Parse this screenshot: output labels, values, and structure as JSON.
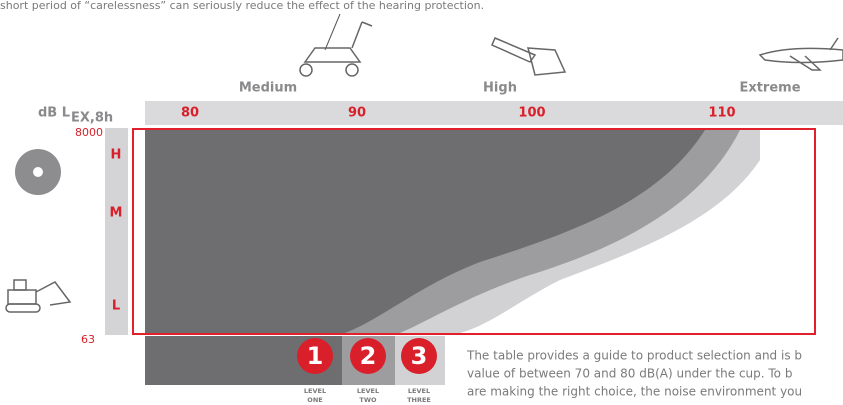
{
  "intro_text": "short period of “carelessness” can seriously reduce the effect of the hearing protection.",
  "noise_categories": [
    "Medium",
    "High",
    "Extreme"
  ],
  "axis_label": {
    "main": "dB L",
    "subscript": "EX,8h"
  },
  "ticks": [
    "80",
    "90",
    "100",
    "110"
  ],
  "frequency": {
    "top": "8000",
    "bottom": "63"
  },
  "bands": [
    "H",
    "M",
    "L"
  ],
  "levels": [
    {
      "number": "1",
      "label_1": "LEVEL",
      "label_2": "ONE"
    },
    {
      "number": "2",
      "label_1": "LEVEL",
      "label_2": "TWO"
    },
    {
      "number": "3",
      "label_1": "LEVEL",
      "label_2": "THREE"
    }
  ],
  "paragraph": [
    "The table provides a guide to product selection and is b",
    "value of between 70 and 80 dB(A) under the cup. To b",
    "are making the right choice, the noise environment you"
  ]
}
